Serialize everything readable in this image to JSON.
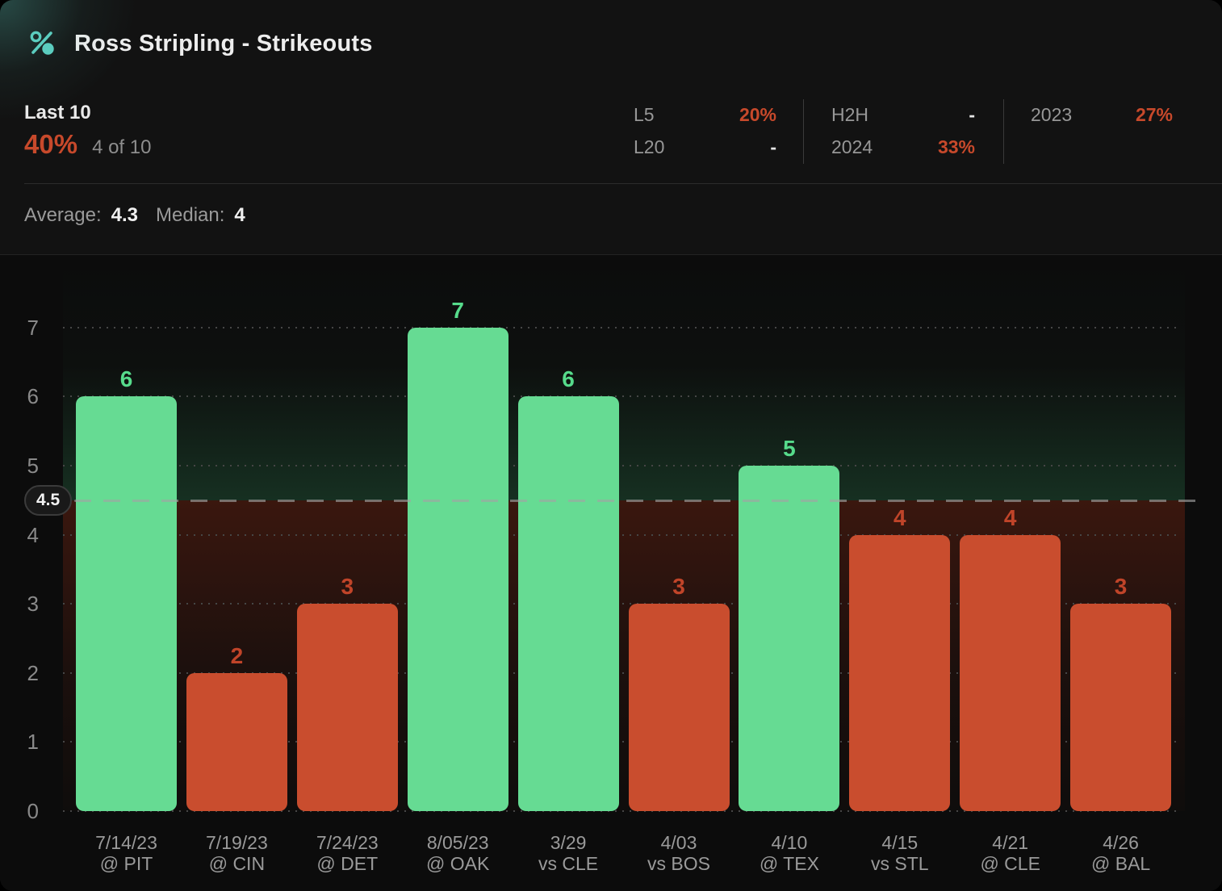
{
  "header": {
    "title": "Ross Stripling - Strikeouts",
    "icon": "percent-icon"
  },
  "summary": {
    "period_label": "Last 10",
    "hit_rate": "40%",
    "hit_fraction": "4 of 10",
    "splits": [
      {
        "rows": [
          {
            "label": "L5",
            "value": "20%"
          },
          {
            "label": "L20",
            "value": "-"
          }
        ]
      },
      {
        "rows": [
          {
            "label": "H2H",
            "value": "-"
          },
          {
            "label": "2024",
            "value": "33%"
          }
        ]
      },
      {
        "rows": [
          {
            "label": "2023",
            "value": "27%"
          }
        ]
      }
    ],
    "average_label": "Average:",
    "average_value": "4.3",
    "median_label": "Median:",
    "median_value": "4"
  },
  "chart_data": {
    "type": "bar",
    "title": "Ross Stripling - Strikeouts",
    "categories": [
      [
        "7/14/23",
        "@ PIT"
      ],
      [
        "7/19/23",
        "@ CIN"
      ],
      [
        "7/24/23",
        "@ DET"
      ],
      [
        "8/05/23",
        "@ OAK"
      ],
      [
        "3/29",
        "vs CLE"
      ],
      [
        "4/03",
        "vs BOS"
      ],
      [
        "4/10",
        "@ TEX"
      ],
      [
        "4/15",
        "vs STL"
      ],
      [
        "4/21",
        "@ CLE"
      ],
      [
        "4/26",
        "@ BAL"
      ]
    ],
    "values": [
      6,
      2,
      3,
      7,
      6,
      3,
      5,
      4,
      4,
      3
    ],
    "threshold": 4.5,
    "threshold_label": "4.5",
    "ylim": [
      0,
      7
    ],
    "yticks": [
      0,
      1,
      2,
      3,
      4,
      5,
      6,
      7
    ],
    "grid": "dotted horizontal",
    "legend": "none",
    "bar_color_rule": "green if value over threshold, red if under"
  },
  "colors": {
    "accent_teal": "#5BCDBF",
    "over_bar": "#66DB93",
    "over_label": "#56DB8B",
    "under_bar": "#C94D2E",
    "under_label": "#C04429",
    "negative_stat": "#C7492B",
    "card_bg": "#121212",
    "chart_bg": "#0C0C0C",
    "muted_text": "#9A9A9A"
  }
}
